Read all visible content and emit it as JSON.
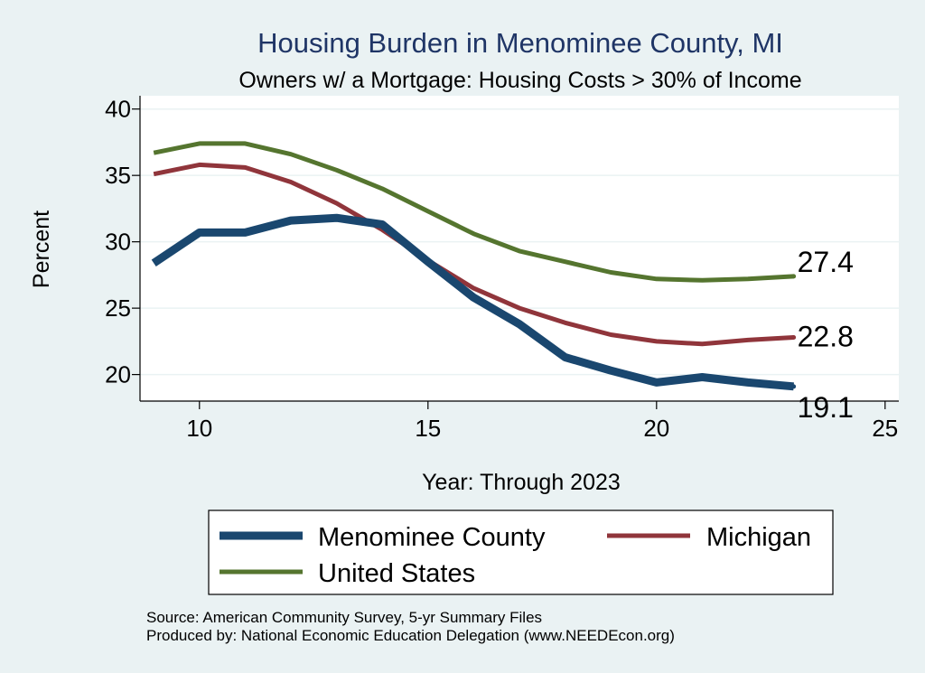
{
  "chart_data": {
    "type": "line",
    "title": "Housing Burden in Menominee County, MI",
    "subtitle": "Owners w/ a Mortgage: Housing Costs > 30% of Income",
    "xlabel": "Year: Through 2023",
    "ylabel": "Percent",
    "xlim": [
      8.7,
      25.3
    ],
    "ylim": [
      18,
      41
    ],
    "x_ticks": [
      10,
      15,
      20,
      25
    ],
    "y_ticks": [
      20,
      25,
      30,
      35,
      40
    ],
    "x": [
      9,
      10,
      11,
      12,
      13,
      14,
      15,
      16,
      17,
      18,
      19,
      20,
      21,
      22,
      23
    ],
    "series": [
      {
        "name": "Menominee County",
        "color": "#1a476f",
        "values": [
          28.4,
          30.7,
          30.7,
          31.6,
          31.8,
          31.3,
          28.5,
          25.8,
          23.8,
          21.3,
          20.3,
          19.4,
          19.8,
          19.4,
          19.1
        ],
        "end_label": "19.1"
      },
      {
        "name": "Michigan",
        "color": "#90353b",
        "values": [
          35.1,
          35.8,
          35.6,
          34.5,
          32.9,
          30.9,
          28.6,
          26.5,
          25.0,
          23.9,
          23.0,
          22.5,
          22.3,
          22.6,
          22.8
        ],
        "end_label": "22.8"
      },
      {
        "name": "United States",
        "color": "#55752f",
        "values": [
          36.7,
          37.4,
          37.4,
          36.6,
          35.4,
          34.0,
          32.3,
          30.6,
          29.3,
          28.5,
          27.7,
          27.2,
          27.1,
          27.2,
          27.4
        ],
        "end_label": "27.4"
      }
    ],
    "legend": [
      "Menominee County",
      "Michigan",
      "United States"
    ],
    "legend_position": "bottom",
    "grid": true
  },
  "notes": {
    "source": "Source: American Community Survey, 5-yr Summary Files",
    "produced": "Produced by: National Economic Education Delegation (www.NEEDEcon.org)"
  }
}
